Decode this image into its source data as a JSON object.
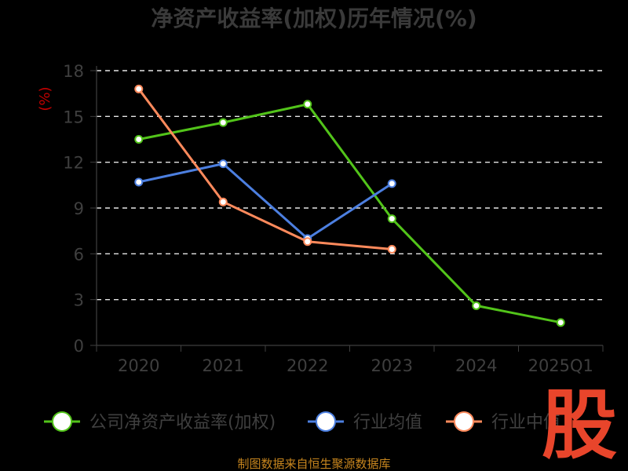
{
  "chart_data": {
    "type": "line",
    "title": "净资产收益率(加权)历年情况(%)",
    "ylabel": "(%)",
    "categories": [
      "2020",
      "2021",
      "2022",
      "2023",
      "2024",
      "2025Q1"
    ],
    "ylim": [
      0,
      18
    ],
    "yticks": [
      0,
      3,
      6,
      9,
      12,
      15,
      18
    ],
    "grid": true,
    "legend_position": "bottom",
    "series": [
      {
        "name": "公司净资产收益率(加权)",
        "color": "#52c41a",
        "dashed": false,
        "values": [
          13.5,
          14.6,
          15.8,
          8.3,
          2.6,
          1.5
        ]
      },
      {
        "name": "行业均值",
        "color": "#4c7fe0",
        "dashed": false,
        "values": [
          10.7,
          11.9,
          7.0,
          10.6,
          null,
          null
        ]
      },
      {
        "name": "行业中值",
        "color": "#ff8a5c",
        "dashed": false,
        "values": [
          16.8,
          9.4,
          6.8,
          6.3,
          null,
          null
        ]
      }
    ]
  },
  "footer": {
    "source": "制图数据来自恒生聚源数据库"
  },
  "watermark": {
    "text": "股"
  }
}
